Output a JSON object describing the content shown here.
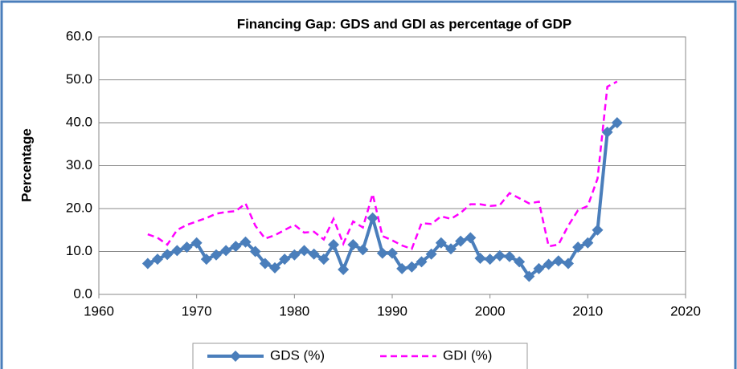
{
  "chart_data": {
    "type": "line",
    "title": "Financing Gap: GDS and GDI as percentage of GDP",
    "y_label": "Percentage",
    "x": [
      1965,
      1966,
      1967,
      1968,
      1969,
      1970,
      1971,
      1972,
      1973,
      1974,
      1975,
      1976,
      1977,
      1978,
      1979,
      1980,
      1981,
      1982,
      1983,
      1984,
      1985,
      1986,
      1987,
      1988,
      1989,
      1990,
      1991,
      1992,
      1993,
      1994,
      1995,
      1996,
      1997,
      1998,
      1999,
      2000,
      2001,
      2002,
      2003,
      2004,
      2005,
      2006,
      2007,
      2008,
      2009,
      2010,
      2011,
      2012,
      2013
    ],
    "series": [
      {
        "name": "GDS (%)",
        "color": "#4a7ebb",
        "style": "solid-diamond",
        "values": [
          7.2,
          8.2,
          9.3,
          10.2,
          11.0,
          12.0,
          8.2,
          9.2,
          10.2,
          11.2,
          12.2,
          10.0,
          7.2,
          6.2,
          8.2,
          9.2,
          10.2,
          9.4,
          8.2,
          11.6,
          5.8,
          11.6,
          10.4,
          17.8,
          9.6,
          9.6,
          6.0,
          6.4,
          7.6,
          9.4,
          12.0,
          10.6,
          12.4,
          13.2,
          8.4,
          8.2,
          9.0,
          8.8,
          7.6,
          4.2,
          6.0,
          7.0,
          7.8,
          7.2,
          11.0,
          12.0,
          15.0,
          37.8,
          40.0
        ]
      },
      {
        "name": "GDI (%)",
        "color": "#ff00ff",
        "style": "dashed",
        "values": [
          14.0,
          13.2,
          11.6,
          15.0,
          16.2,
          17.0,
          17.8,
          18.8,
          19.2,
          19.4,
          21.2,
          16.0,
          13.0,
          13.8,
          15.0,
          16.2,
          14.4,
          14.6,
          12.8,
          17.6,
          11.8,
          17.0,
          15.6,
          23.4,
          13.6,
          12.6,
          11.4,
          10.6,
          16.6,
          16.4,
          18.2,
          17.6,
          19.0,
          21.0,
          21.0,
          20.6,
          20.8,
          23.6,
          22.4,
          21.2,
          21.6,
          11.2,
          11.6,
          16.0,
          19.6,
          20.6,
          27.0,
          48.4,
          49.6
        ]
      }
    ],
    "xlim": [
      1960,
      2020
    ],
    "xticks": [
      1960,
      1970,
      1980,
      1990,
      2000,
      2010,
      2020
    ],
    "ylim": [
      0,
      60
    ],
    "yticks": [
      {
        "value": 0,
        "label": "0.0"
      },
      {
        "value": 10,
        "label": "10.0"
      },
      {
        "value": 20,
        "label": "20.0"
      },
      {
        "value": 30,
        "label": "30.0"
      },
      {
        "value": 40,
        "label": "40.0"
      },
      {
        "value": 50,
        "label": "50.0"
      },
      {
        "value": 60,
        "label": "60.0"
      }
    ],
    "grid": true,
    "legend": "bottom"
  }
}
